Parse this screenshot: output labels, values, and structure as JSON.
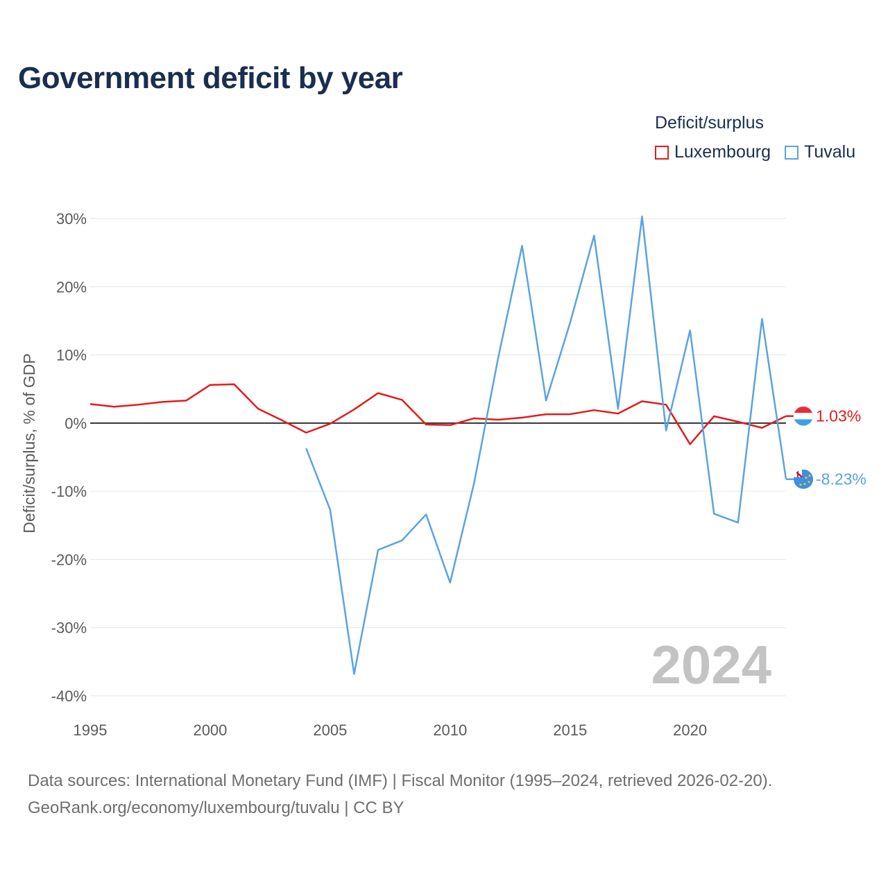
{
  "title": "Government deficit by year",
  "legend": {
    "title": "Deficit/surplus",
    "items": [
      {
        "label": "Luxembourg",
        "color": "#e31b1b"
      },
      {
        "label": "Tuvalu",
        "color": "#5aa3e0"
      }
    ]
  },
  "footer": {
    "line1": "Data sources: International Monetary Fund (IMF) | Fiscal Monitor (1995–2024, retrieved 2026-02-20).",
    "line2": "GeoRank.org/economy/luxembourg/tuvalu | CC BY"
  },
  "chart_data": {
    "type": "line",
    "title": "Government deficit by year",
    "xlabel": "",
    "ylabel": "Deficit/surplus, % of GDP",
    "xlim": [
      1995,
      2024
    ],
    "ylim": [
      -40,
      30
    ],
    "x_ticks": [
      1995,
      2000,
      2005,
      2010,
      2015,
      2020
    ],
    "y_ticks": [
      {
        "value": 30,
        "label": "30%"
      },
      {
        "value": 20,
        "label": "20%"
      },
      {
        "value": 10,
        "label": "10%"
      },
      {
        "value": 0,
        "label": "0%"
      },
      {
        "value": -10,
        "label": "-10%"
      },
      {
        "value": -20,
        "label": "-20%"
      },
      {
        "value": -30,
        "label": "-30%"
      },
      {
        "value": -40,
        "label": "-40%"
      }
    ],
    "grid": true,
    "current_year_label": "2024",
    "series": [
      {
        "name": "Luxembourg",
        "color": "#e31b1b",
        "end_label": "1.03%",
        "x": [
          1995,
          1996,
          1997,
          1998,
          1999,
          2000,
          2001,
          2002,
          2003,
          2004,
          2005,
          2006,
          2007,
          2008,
          2009,
          2010,
          2011,
          2012,
          2013,
          2014,
          2015,
          2016,
          2017,
          2018,
          2019,
          2020,
          2021,
          2022,
          2023,
          2024
        ],
        "values": [
          2.8,
          2.4,
          2.7,
          3.1,
          3.3,
          5.6,
          5.7,
          2.1,
          0.4,
          -1.4,
          -0.1,
          2.0,
          4.4,
          3.4,
          -0.2,
          -0.3,
          0.7,
          0.5,
          0.8,
          1.3,
          1.3,
          1.9,
          1.4,
          3.2,
          2.7,
          -3.1,
          1.0,
          0.2,
          -0.7,
          1.03
        ]
      },
      {
        "name": "Tuvalu",
        "color": "#5aa3e0",
        "end_label": "-8.23%",
        "x": [
          2004,
          2005,
          2006,
          2007,
          2008,
          2009,
          2010,
          2011,
          2012,
          2013,
          2014,
          2015,
          2016,
          2017,
          2018,
          2019,
          2020,
          2021,
          2022,
          2023,
          2024
        ],
        "values": [
          -3.7,
          -12.7,
          -36.8,
          -18.6,
          -17.2,
          -13.4,
          -23.4,
          -8.8,
          9.5,
          26.0,
          3.3,
          14.7,
          27.5,
          2.1,
          30.3,
          -1.1,
          13.6,
          -13.3,
          -14.6,
          15.3,
          -8.23
        ]
      }
    ]
  }
}
